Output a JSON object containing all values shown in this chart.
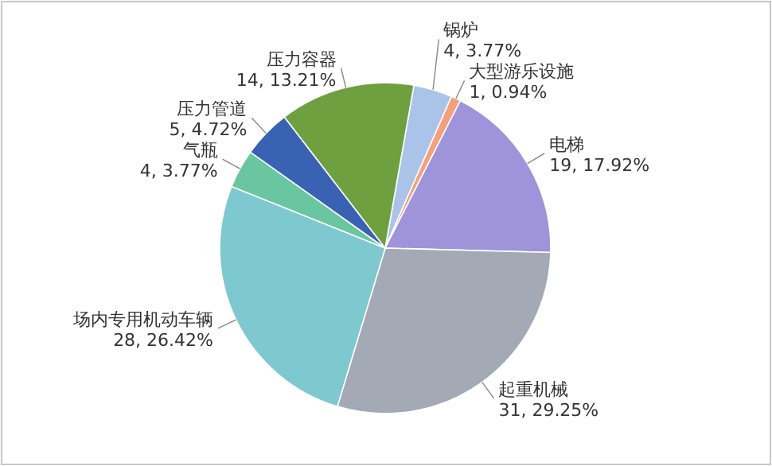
{
  "chart_data": {
    "type": "pie",
    "categories": [
      "锅炉",
      "大型游乐设施",
      "电梯",
      "起重机械",
      "场内专用机动车辆",
      "气瓶",
      "压力管道",
      "压力容器"
    ],
    "values": [
      4,
      1,
      19,
      31,
      28,
      4,
      5,
      14
    ],
    "value_labels": [
      "4, 3.77%",
      "1, 0.94%",
      "19, 17.92%",
      "31, 29.25%",
      "28, 26.42%",
      "4, 3.77%",
      "5, 4.72%",
      "14, 13.21%"
    ],
    "colors": [
      "#a9c4e8",
      "#f4a07a",
      "#9f94d9",
      "#a3a9b5",
      "#7ec8cf",
      "#6ac6a0",
      "#3a62b3",
      "#6fa040"
    ]
  }
}
